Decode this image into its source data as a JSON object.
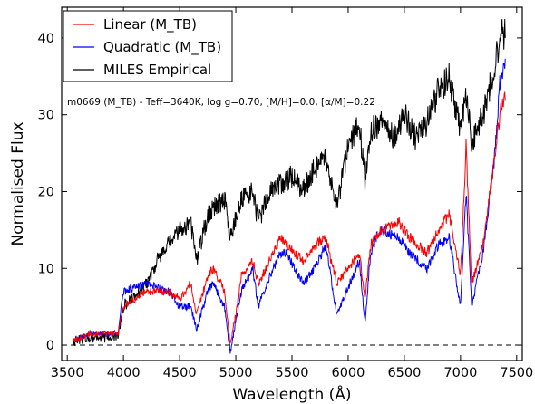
{
  "chart_data": {
    "type": "line",
    "xlabel": "Wavelength (Å)",
    "ylabel": "Normalised Flux",
    "xlim": [
      3450,
      7550
    ],
    "ylim": [
      -2,
      44
    ],
    "xticks": [
      3500,
      4000,
      4500,
      5000,
      5500,
      6000,
      6500,
      7000,
      7500
    ],
    "yticks": [
      0,
      10,
      20,
      30,
      40
    ],
    "annotation": "m0669 (M_TB) - Teff=3640K, log g=0.70, [M/H]=0.0, [α/M]=0.22",
    "reference_line": {
      "y": 0,
      "style": "dashed"
    },
    "legend": {
      "placement": "top-left"
    },
    "series": [
      {
        "name": "Linear (M_TB)",
        "color": "#ff0000",
        "x": [
          3550,
          3700,
          3950,
          4000,
          4200,
          4400,
          4500,
          4600,
          4650,
          4750,
          4800,
          4900,
          4950,
          5000,
          5050,
          5150,
          5200,
          5300,
          5400,
          5450,
          5600,
          5700,
          5800,
          5900,
          6100,
          6150,
          6200,
          6250,
          6300,
          6450,
          6550,
          6700,
          6800,
          6900,
          7000,
          7050,
          7100,
          7200,
          7300,
          7350,
          7400
        ],
        "y": [
          0.5,
          1.5,
          1.5,
          5,
          7,
          7,
          6,
          8,
          4,
          9,
          10,
          7,
          0,
          4,
          9,
          11,
          8,
          11,
          14,
          13,
          11,
          13,
          14,
          8,
          12,
          6,
          13,
          14,
          15,
          16,
          14,
          12,
          15,
          17,
          9,
          26,
          8,
          13,
          24,
          30,
          33
        ]
      },
      {
        "name": "Quadratic (M_TB)",
        "color": "#0000ff",
        "x": [
          3550,
          3700,
          3950,
          4000,
          4200,
          4400,
          4500,
          4600,
          4650,
          4750,
          4800,
          4900,
          4950,
          5000,
          5050,
          5150,
          5200,
          5300,
          5400,
          5450,
          5600,
          5700,
          5800,
          5900,
          6100,
          6150,
          6200,
          6250,
          6300,
          6450,
          6550,
          6700,
          6800,
          6900,
          7000,
          7050,
          7100,
          7200,
          7300,
          7350,
          7400
        ],
        "y": [
          0.5,
          1.5,
          1.5,
          7,
          8,
          7,
          5,
          5,
          2,
          7,
          8,
          5,
          -1,
          3,
          7,
          10,
          5,
          9,
          12,
          12,
          8,
          10,
          13,
          4,
          11,
          3,
          12,
          14,
          15,
          14,
          12,
          10,
          13,
          14,
          5,
          20,
          5,
          12,
          24,
          34,
          37
        ]
      },
      {
        "name": "MILES Empirical",
        "color": "#000000",
        "x": [
          3550,
          3700,
          3800,
          3950,
          4000,
          4200,
          4300,
          4400,
          4500,
          4600,
          4650,
          4750,
          4800,
          4900,
          4950,
          5050,
          5150,
          5200,
          5300,
          5400,
          5500,
          5600,
          5700,
          5800,
          5900,
          6000,
          6100,
          6150,
          6200,
          6300,
          6400,
          6500,
          6600,
          6700,
          6800,
          6900,
          7000,
          7050,
          7100,
          7200,
          7300,
          7350,
          7400
        ],
        "y": [
          0.5,
          1,
          1,
          1,
          5,
          8,
          11,
          13,
          15,
          16,
          11,
          17,
          18,
          19,
          14,
          19,
          20,
          16,
          20,
          21,
          22,
          20,
          23,
          24,
          18,
          26,
          29,
          21,
          28,
          29,
          27,
          30,
          27,
          29,
          33,
          35,
          28,
          33,
          26,
          30,
          36,
          40,
          41
        ]
      }
    ]
  }
}
